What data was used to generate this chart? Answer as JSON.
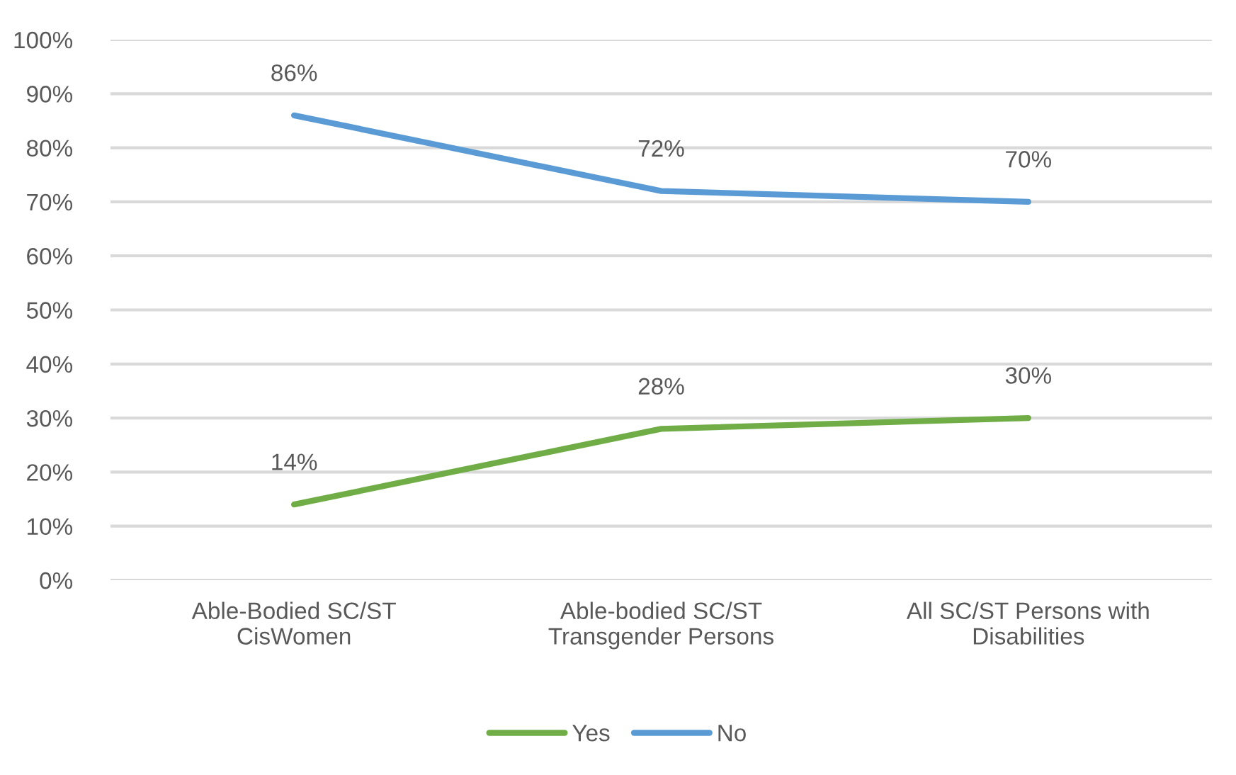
{
  "chart_data": {
    "type": "line",
    "categories": [
      "Able-Bodied SC/ST\nCisWomen",
      "Able-bodied SC/ST\nTransgender Persons",
      "All SC/ST Persons with\nDisabilities"
    ],
    "series": [
      {
        "name": "Yes",
        "color": "#70ad47",
        "values": [
          14,
          28,
          30
        ],
        "value_labels": [
          "14%",
          "28%",
          "30%"
        ]
      },
      {
        "name": "No",
        "color": "#5b9bd5",
        "values": [
          86,
          72,
          70
        ],
        "value_labels": [
          "86%",
          "72%",
          "70%"
        ]
      }
    ],
    "ylim": [
      0,
      100
    ],
    "yticks": [
      {
        "value": 0,
        "label": "0%"
      },
      {
        "value": 10,
        "label": "10%"
      },
      {
        "value": 20,
        "label": "20%"
      },
      {
        "value": 30,
        "label": "30%"
      },
      {
        "value": 40,
        "label": "40%"
      },
      {
        "value": 50,
        "label": "50%"
      },
      {
        "value": 60,
        "label": "60%"
      },
      {
        "value": 70,
        "label": "70%"
      },
      {
        "value": 80,
        "label": "80%"
      },
      {
        "value": 90,
        "label": "90%"
      },
      {
        "value": 100,
        "label": "100%"
      }
    ],
    "grid": "y",
    "legend": "bottom",
    "marker": "none",
    "line_style": "solid"
  }
}
